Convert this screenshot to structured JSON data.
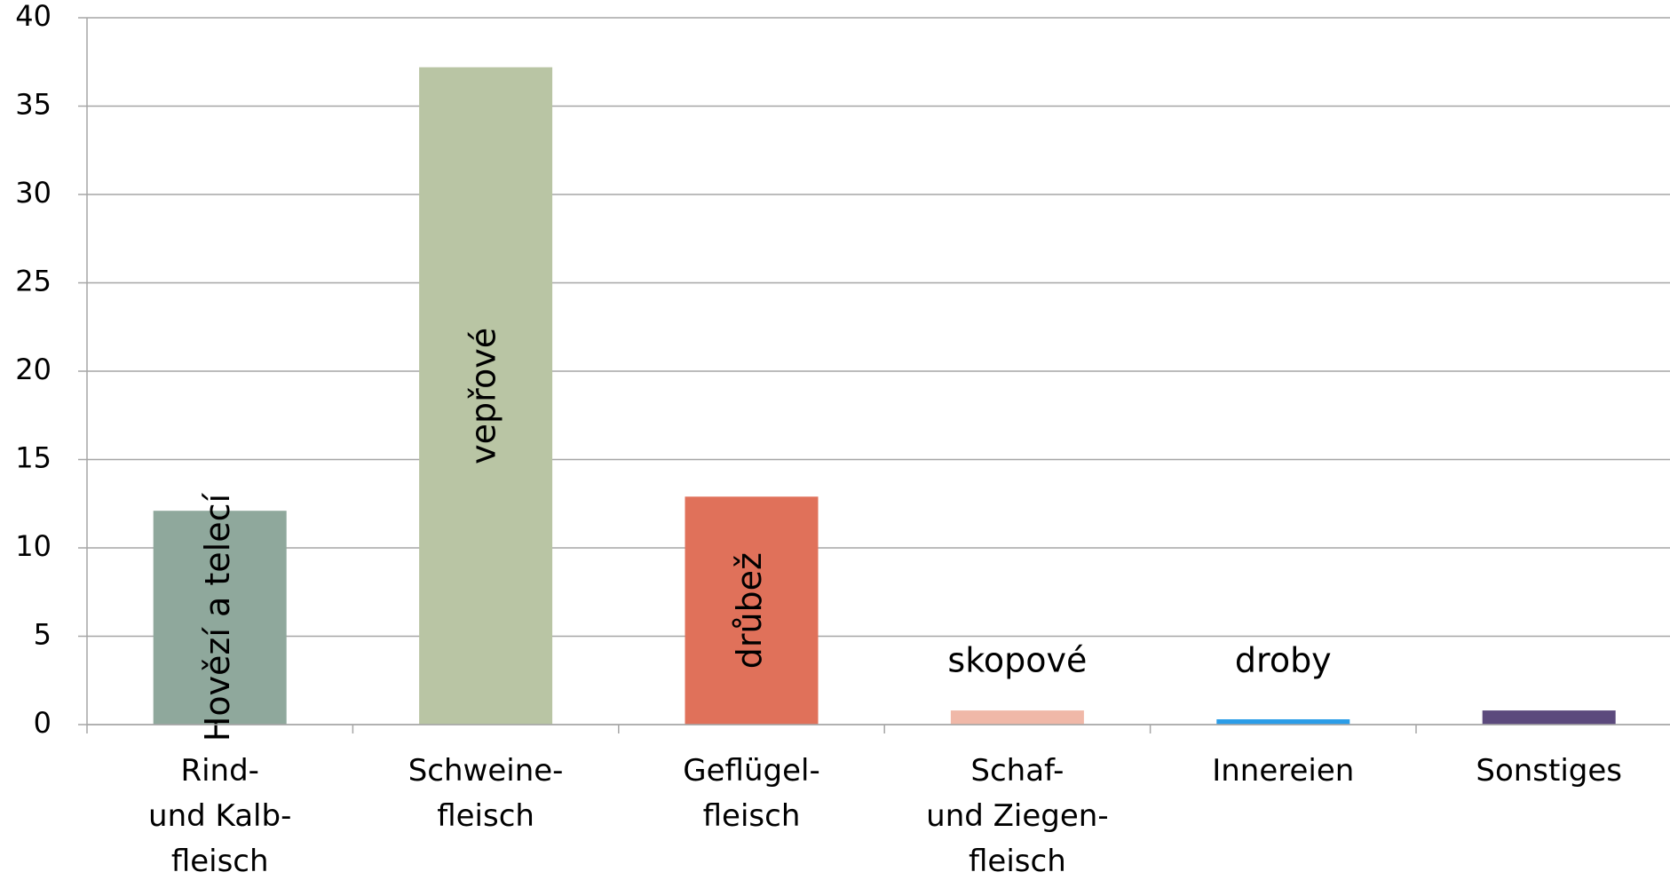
{
  "chart_data": {
    "type": "bar",
    "categories": [
      "Rind-\nund Kalb-\nfleisch",
      "Schweine-\nfleisch",
      "Geflügel-\nfleisch",
      "Schaf-\nund Ziegen-\nfleisch",
      "Innereien",
      "Sonstiges"
    ],
    "values": [
      12.1,
      37.2,
      12.9,
      0.8,
      0.3,
      0.8
    ],
    "bar_labels": [
      "Hovězí a telecí",
      "vepřové",
      "drůbež",
      "skopové",
      "droby",
      null
    ],
    "colors": [
      "#8fa89c",
      "#b9c5a4",
      "#e0715a",
      "#f0b8a8",
      "#2b9de8",
      "#5c4a7d"
    ],
    "ylim": [
      0,
      40
    ],
    "yticks": [
      0,
      5,
      10,
      15,
      20,
      25,
      30,
      35,
      40
    ],
    "grid": true
  }
}
